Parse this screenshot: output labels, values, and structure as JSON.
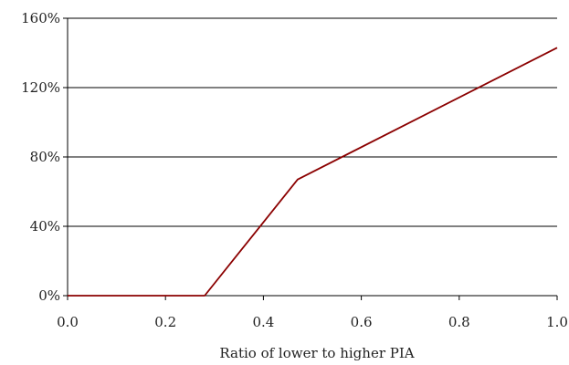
{
  "chart_data": {
    "type": "line",
    "title": "",
    "xlabel": "Ratio of lower to higher PIA",
    "ylabel": "",
    "xlim": [
      0.0,
      1.0
    ],
    "ylim": [
      0,
      160
    ],
    "x_ticks": [
      "0.0",
      "0.2",
      "0.4",
      "0.6",
      "0.8",
      "1.0"
    ],
    "y_ticks": [
      "0%",
      "40%",
      "80%",
      "120%",
      "160%"
    ],
    "grid": "horizontal",
    "legend": "none",
    "series": [
      {
        "color": "#8b0000",
        "x": [
          0.0,
          0.28,
          0.47,
          1.0
        ],
        "y": [
          0,
          0,
          67,
          143
        ]
      }
    ]
  }
}
